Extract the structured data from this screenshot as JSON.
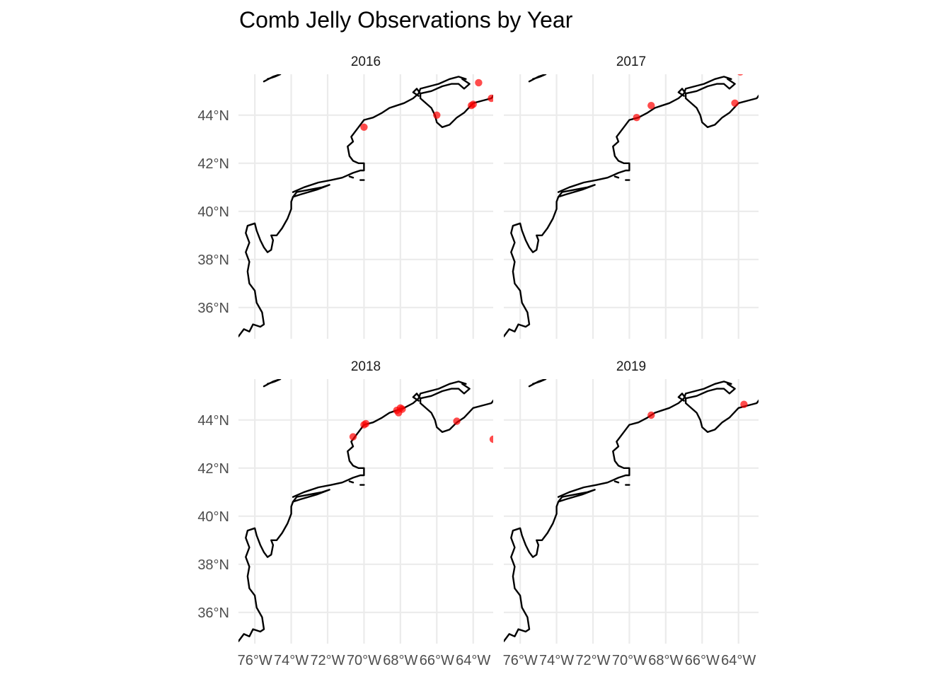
{
  "chart_data": {
    "type": "scatter",
    "title": "Comb Jelly Observations by Year",
    "xlabel": "",
    "ylabel": "",
    "xlim": [
      -76.9,
      -62.9
    ],
    "ylim": [
      34.7,
      45.7
    ],
    "x_ticks": [
      -76,
      -74,
      -72,
      -70,
      -68,
      -66,
      -64
    ],
    "x_tick_labels": [
      "76°W",
      "74°W",
      "72°W",
      "70°W",
      "68°W",
      "66°W",
      "64°W"
    ],
    "y_ticks": [
      36,
      38,
      40,
      42,
      44
    ],
    "y_tick_labels": [
      "36°N",
      "38°N",
      "40°N",
      "42°N",
      "44°N"
    ],
    "grid": true,
    "legend": "none",
    "point_color": "#ff0000",
    "facets": [
      {
        "label": "2016",
        "points": [
          {
            "lon": -70.0,
            "lat": 43.5
          },
          {
            "lon": -66.0,
            "lat": 44.0
          },
          {
            "lon": -64.1,
            "lat": 44.4
          },
          {
            "lon": -64.0,
            "lat": 44.45
          },
          {
            "lon": -63.7,
            "lat": 45.35
          },
          {
            "lon": -63.0,
            "lat": 44.7
          }
        ]
      },
      {
        "label": "2017",
        "points": [
          {
            "lon": -69.6,
            "lat": 43.9
          },
          {
            "lon": -68.8,
            "lat": 44.4
          },
          {
            "lon": -64.2,
            "lat": 44.5
          },
          {
            "lon": -63.9,
            "lat": 45.8
          }
        ]
      },
      {
        "label": "2018",
        "points": [
          {
            "lon": -70.6,
            "lat": 43.3
          },
          {
            "lon": -70.0,
            "lat": 43.8
          },
          {
            "lon": -69.9,
            "lat": 43.85
          },
          {
            "lon": -68.2,
            "lat": 44.4
          },
          {
            "lon": -68.0,
            "lat": 44.5
          },
          {
            "lon": -68.1,
            "lat": 44.3
          },
          {
            "lon": -67.9,
            "lat": 44.45
          },
          {
            "lon": -64.9,
            "lat": 43.95
          },
          {
            "lon": -62.9,
            "lat": 43.2
          }
        ]
      },
      {
        "label": "2019",
        "points": [
          {
            "lon": -68.8,
            "lat": 44.2
          },
          {
            "lon": -63.7,
            "lat": 44.65
          }
        ]
      }
    ]
  }
}
